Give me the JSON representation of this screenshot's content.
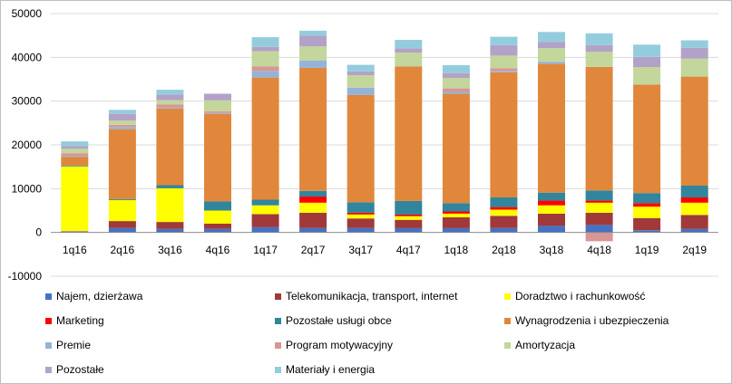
{
  "chart_data": {
    "type": "bar",
    "stacked": true,
    "categories": [
      "1q16",
      "2q16",
      "3q16",
      "4q16",
      "1q17",
      "2q17",
      "3q17",
      "4q17",
      "1q18",
      "2q18",
      "3q18",
      "4q18",
      "1q19",
      "2q19"
    ],
    "ylim": [
      -10000,
      50000
    ],
    "yticks": [
      -10000,
      0,
      10000,
      20000,
      30000,
      40000,
      50000
    ],
    "ytick_labels": [
      "-10000",
      "0",
      "10000",
      "20000",
      "30000",
      "40000",
      "50000"
    ],
    "grid": true,
    "legend_position": "bottom",
    "series": [
      {
        "name": "Najem, dzierżawa",
        "color": "#4472C4",
        "values": [
          200,
          1000,
          800,
          800,
          1200,
          1000,
          1000,
          1000,
          1000,
          1000,
          1500,
          1700,
          500,
          800
        ]
      },
      {
        "name": "Telekomunikacja, transport, internet",
        "color": "#A0393A",
        "values": [
          100,
          1600,
          1600,
          1200,
          3000,
          3500,
          2200,
          1900,
          2500,
          2800,
          2800,
          2800,
          2800,
          3200
        ]
      },
      {
        "name": "Doradztwo i rachunkowość",
        "color": "#FFFF00",
        "values": [
          14800,
          4800,
          7700,
          3000,
          2000,
          2300,
          900,
          800,
          800,
          1400,
          1900,
          2300,
          2600,
          2800
        ]
      },
      {
        "name": "Marketing",
        "color": "#FF0000",
        "values": [
          0,
          0,
          0,
          0,
          0,
          1400,
          400,
          400,
          500,
          600,
          1100,
          500,
          800,
          1200
        ]
      },
      {
        "name": "Pozostałe usługi obce",
        "color": "#31859C",
        "values": [
          200,
          200,
          700,
          2100,
          1300,
          1300,
          2400,
          3100,
          1900,
          2200,
          1800,
          2300,
          2300,
          2700
        ]
      },
      {
        "name": "Wynagrodzenia i ubezpieczenia",
        "color": "#E0873C",
        "values": [
          2000,
          16000,
          17500,
          20000,
          27900,
          28100,
          24500,
          30700,
          25000,
          28600,
          29400,
          28200,
          24800,
          24900
        ]
      },
      {
        "name": "Premie",
        "color": "#95B3D7",
        "values": [
          200,
          500,
          200,
          200,
          1500,
          1700,
          1700,
          0,
          500,
          300,
          500,
          0,
          0,
          0
        ]
      },
      {
        "name": "Program motywacyjny",
        "color": "#D99694",
        "values": [
          600,
          500,
          700,
          400,
          1000,
          0,
          0,
          0,
          700,
          600,
          0,
          -2000,
          0,
          0
        ]
      },
      {
        "name": "Amortyzacja",
        "color": "#C3D69B",
        "values": [
          1000,
          1000,
          1000,
          2500,
          3500,
          3200,
          2800,
          3200,
          2400,
          2900,
          3100,
          3500,
          4000,
          4100
        ]
      },
      {
        "name": "Pozostałe",
        "color": "#B3A2C7",
        "values": [
          600,
          1500,
          1300,
          1500,
          1000,
          2500,
          900,
          1000,
          1100,
          2400,
          1400,
          1500,
          2300,
          2500
        ]
      },
      {
        "name": "Materiały i energia",
        "color": "#93CDDD",
        "values": [
          1100,
          900,
          1100,
          0,
          2200,
          1100,
          1500,
          1900,
          1800,
          1900,
          2300,
          2700,
          2800,
          1700
        ]
      }
    ]
  }
}
